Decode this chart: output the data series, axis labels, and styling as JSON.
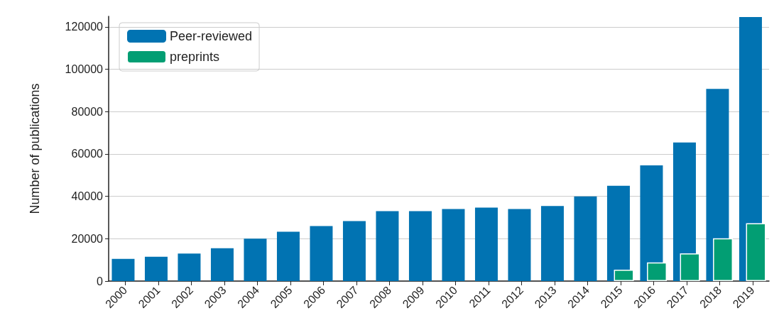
{
  "chart_data": {
    "type": "bar",
    "ylabel": "Number of publications",
    "categories": [
      "2000",
      "2001",
      "2002",
      "2003",
      "2004",
      "2005",
      "2006",
      "2007",
      "2008",
      "2009",
      "2010",
      "2011",
      "2012",
      "2013",
      "2014",
      "2015",
      "2016",
      "2017",
      "2018",
      "2019"
    ],
    "series": [
      {
        "name": "Peer-reviewed",
        "color": "#0173b2",
        "values": [
          10500,
          11500,
          13000,
          15500,
          20000,
          23300,
          26000,
          28300,
          33000,
          33000,
          34000,
          34700,
          34000,
          35400,
          40000,
          45000,
          54600,
          65400,
          90700,
          124700
        ]
      },
      {
        "name": "preprints",
        "color": "#029e73",
        "values": [
          null,
          null,
          null,
          null,
          null,
          null,
          null,
          null,
          null,
          null,
          null,
          null,
          null,
          null,
          null,
          5400,
          8800,
          13100,
          20200,
          27300
        ]
      }
    ],
    "ylim": [
      0,
      125000
    ],
    "yticks": [
      0,
      20000,
      40000,
      60000,
      80000,
      100000,
      120000
    ],
    "grid": "y",
    "legend": "top left"
  }
}
